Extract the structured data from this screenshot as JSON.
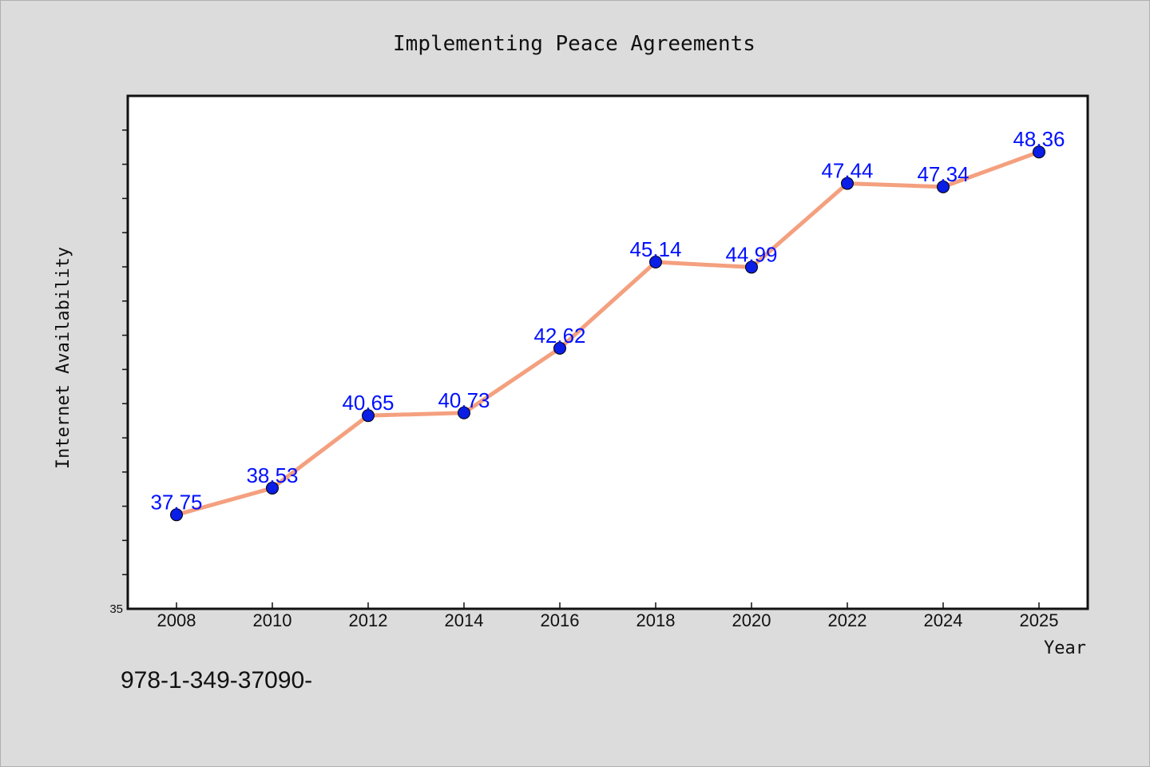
{
  "chart_data": {
    "type": "line",
    "title": "Implementing Peace Agreements",
    "xlabel": "Year",
    "ylabel": "Internet Availability",
    "categories": [
      "2008",
      "2010",
      "2012",
      "2014",
      "2016",
      "2018",
      "2020",
      "2022",
      "2024",
      "2025"
    ],
    "series": [
      {
        "values": [
          37.75,
          38.53,
          40.65,
          40.73,
          42.62,
          45.14,
          44.99,
          47.44,
          47.34,
          48.36
        ]
      }
    ],
    "data_labels": [
      "37.75",
      "38.53",
      "40.65",
      "40.73",
      "42.62",
      "45.14",
      "44.99",
      "47.44",
      "47.34",
      "48.36"
    ],
    "y_tick_labels": [
      "35"
    ],
    "ylim": [
      35,
      50
    ],
    "grid": false,
    "colors": {
      "line": "#f4a07f",
      "marker": "#0a1ee6",
      "label": "#0010ff",
      "plot_background": "#ffffff",
      "page_background": "#dcdcdc"
    }
  },
  "footer": {
    "text": "978-1-349-37090-"
  }
}
